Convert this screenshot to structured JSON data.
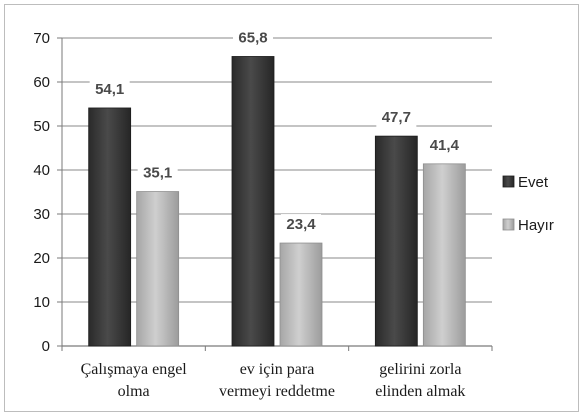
{
  "chart_data": {
    "type": "bar",
    "categories": [
      [
        "Çalışmaya engel",
        "olma"
      ],
      [
        "ev için para",
        "vermeyi reddetme"
      ],
      [
        "gelirini zorla",
        "elinden almak"
      ]
    ],
    "series": [
      {
        "name": "Evet",
        "values": [
          54.1,
          65.8,
          47.7
        ],
        "labels": [
          "54,1",
          "65,8",
          "47,7"
        ],
        "color": "#3d3d3d"
      },
      {
        "name": "Hayır",
        "values": [
          35.1,
          23.4,
          41.4
        ],
        "labels": [
          "35,1",
          "23,4",
          "41,4"
        ],
        "color": "#b8b8b8"
      }
    ],
    "yticks": [
      "0",
      "10",
      "20",
      "30",
      "40",
      "50",
      "60",
      "70"
    ],
    "ylim": [
      0,
      70
    ],
    "grid": true,
    "legend_position": "right"
  }
}
